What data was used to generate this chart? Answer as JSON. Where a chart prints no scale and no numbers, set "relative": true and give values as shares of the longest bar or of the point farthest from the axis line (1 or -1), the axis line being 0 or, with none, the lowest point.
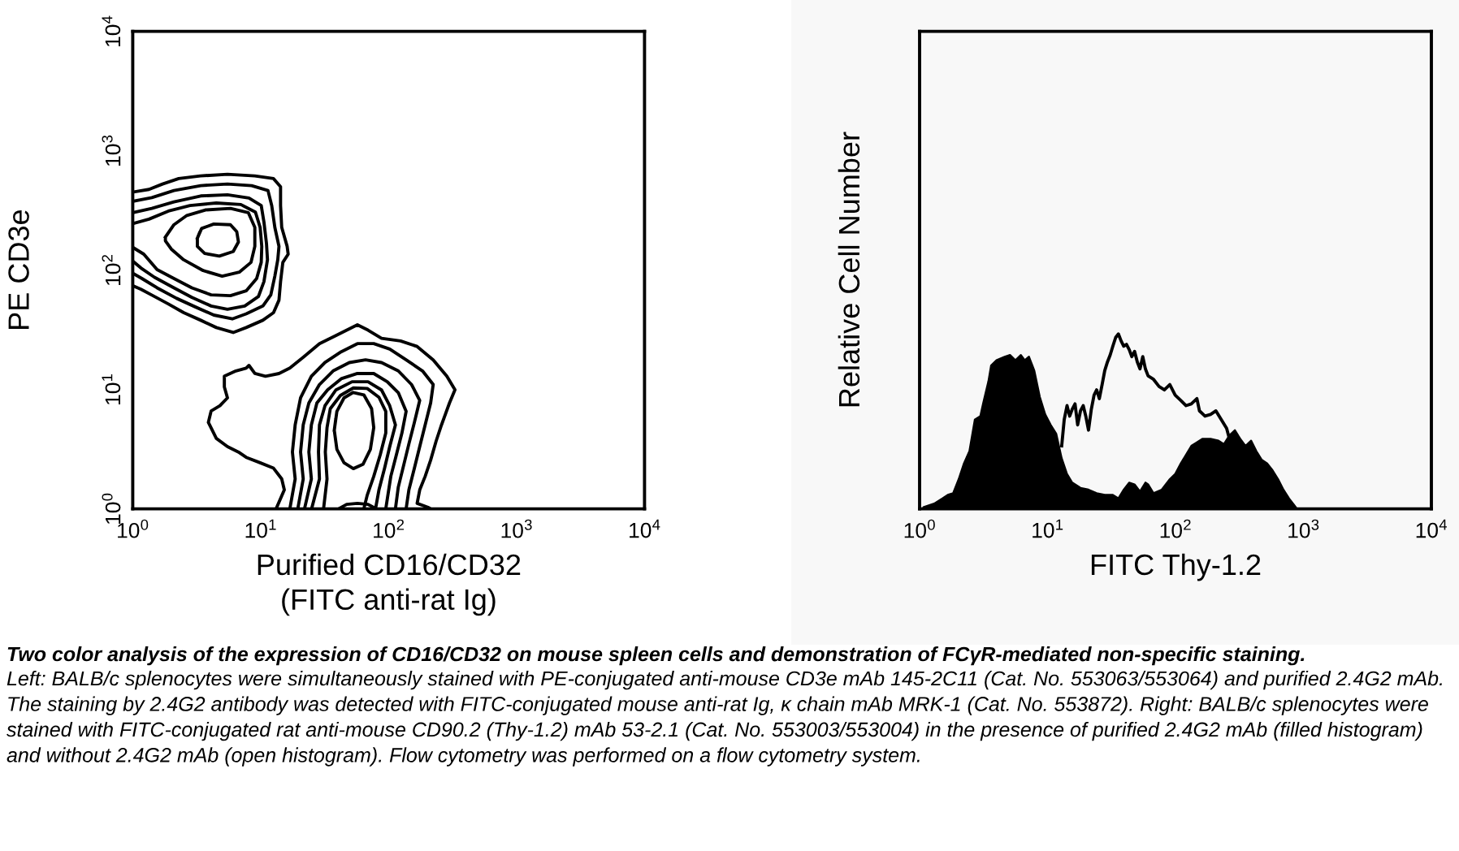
{
  "chart_data": [
    {
      "type": "line",
      "log": "xy",
      "xlabel": "Purified CD16/CD32\n(FITC anti-rat Ig)",
      "ylabel": "PE CD3e",
      "xlim": [
        1,
        10000
      ],
      "ylim": [
        1,
        10000
      ],
      "xticks": [
        {
          "value": 1,
          "label": "10$^{0}$"
        },
        {
          "value": 10,
          "label": "10$^{1}$"
        },
        {
          "value": 100,
          "label": "10$^{2}$"
        },
        {
          "value": 1000,
          "label": "10$^{3}$"
        },
        {
          "value": 10000,
          "label": "10$^{4}$"
        }
      ],
      "yticks": [
        {
          "value": 1,
          "label": "10$^{0}$"
        },
        {
          "value": 10,
          "label": "10$^{1}$"
        },
        {
          "value": 100,
          "label": "10$^{2}$"
        },
        {
          "value": 1000,
          "label": "10$^{3}$"
        },
        {
          "value": 10000,
          "label": "10$^{4}$"
        }
      ],
      "series": [
        {
          "color": "#000000",
          "x": [
            1.0,
            1.34,
            1.71,
            2.29,
            3.38,
            5.5,
            9.0,
            12.6,
            14.3,
            14.3,
            14.6,
            16.1,
            16.4,
            14.9,
            14.3,
            13.9,
            12.6,
            10.4,
            7.7,
            6.1,
            4.5,
            3.4,
            2.5,
            1.9,
            1.4,
            1.16,
            1.0
          ],
          "values": [
            450,
            474,
            526,
            584,
            615,
            635,
            615,
            584,
            499,
            347,
            228,
            158,
            136,
            116,
            80,
            56,
            44,
            38,
            33,
            30,
            33,
            38,
            44,
            52,
            62,
            69,
            74
          ]
        },
        {
          "color": "#000000",
          "x": [
            1.0,
            1.41,
            2.1,
            3.4,
            5.5,
            8.5,
            11.4,
            12.2,
            12.9,
            13.9,
            13.6,
            12.9,
            12.0,
            10.4,
            7.7,
            6.0,
            4.3,
            3.1,
            2.2,
            1.55,
            1.18,
            1.0
          ],
          "values": [
            377,
            405,
            464,
            510,
            526,
            510,
            464,
            347,
            228,
            158,
            122,
            89,
            62,
            50,
            43,
            39,
            42,
            49,
            58,
            71,
            85,
            94
          ]
        },
        {
          "color": "#000000",
          "x": [
            1.0,
            1.41,
            2.1,
            3.4,
            5.5,
            8.1,
            10.1,
            10.6,
            11.1,
            11.3,
            10.6,
            9.6,
            7.5,
            5.5,
            4.1,
            2.9,
            2.1,
            1.48,
            1.16,
            1.0
          ],
          "values": [
            303,
            329,
            373,
            418,
            427,
            401,
            347,
            253,
            167,
            122,
            80,
            60,
            50,
            47,
            50,
            59,
            71,
            87,
            104,
            119
          ]
        },
        {
          "color": "#000000",
          "x": [
            1.0,
            1.34,
            1.9,
            2.8,
            4.5,
            7.0,
            9.1,
            9.9,
            10.2,
            10.1,
            9.3,
            7.7,
            5.8,
            4.1,
            2.9,
            2.1,
            1.55,
            1.22,
            1.0
          ],
          "values": [
            245,
            267,
            312,
            347,
            365,
            354,
            306,
            228,
            158,
            116,
            85,
            67,
            61,
            62,
            71,
            85,
            101,
            136,
            155
          ]
        },
        {
          "color": "#000000",
          "x": [
            1.8,
            2.1,
            2.65,
            3.7,
            5.8,
            8.0,
            9.0,
            9.0,
            8.4,
            6.8,
            5.0,
            3.55,
            2.5,
            2.0,
            1.8,
            1.8,
            1.95
          ],
          "values": [
            189,
            240,
            287,
            319,
            329,
            303,
            228,
            158,
            116,
            96,
            89,
            99,
            122,
            150,
            176,
            189,
            214
          ]
        },
        {
          "color": "#000000",
          "x": [
            3.2,
            3.45,
            4.3,
            5.8,
            6.5,
            6.7,
            6.1,
            4.75,
            3.65,
            3.2,
            3.2,
            3.32
          ],
          "values": [
            185,
            223,
            243,
            240,
            210,
            172,
            143,
            131,
            138,
            158,
            185,
            204
          ]
        },
        {
          "color": "#000000",
          "x": [
            13.2,
            15.3,
            14.6,
            12.6,
            9.9,
            7.7,
            6.7,
            5.5,
            4.5,
            3.9,
            4.1,
            4.8,
            5.5,
            5.2,
            5.2,
            6.4,
            7.7,
            8.1,
            9.0,
            10.9,
            13.9,
            16.9,
            21.5,
            28.8,
            38.7,
            51.8,
            57,
            69,
            88,
            124,
            167,
            223,
            285,
            330,
            299,
            259,
            235,
            213,
            193,
            175,
            167,
            203,
            213
          ],
          "values": [
            1.0,
            1.44,
            1.78,
            2.19,
            2.43,
            2.7,
            2.99,
            3.32,
            3.89,
            5.3,
            6.6,
            7.3,
            8.5,
            10.5,
            12.9,
            14.3,
            15.1,
            15.9,
            13.6,
            12.9,
            13.6,
            15.1,
            18.6,
            24.2,
            28.3,
            33.1,
            34.8,
            31.4,
            26.8,
            25.5,
            22.9,
            17.7,
            12.9,
            9.95,
            7.7,
            5.05,
            3.69,
            2.56,
            1.87,
            1.44,
            1.11,
            1.03,
            1.0
          ]
        },
        {
          "color": "#000000",
          "x": [
            16.9,
            18.6,
            17.7,
            18.6,
            20.5,
            24.9,
            31.8,
            42.6,
            57,
            76.5,
            102,
            137,
            184,
            223,
            213,
            193,
            175,
            159,
            144,
            137
          ],
          "values": [
            1.0,
            1.78,
            2.99,
            5.05,
            8.5,
            12.9,
            16.8,
            20.7,
            24.2,
            24.2,
            21.8,
            17.7,
            14.3,
            11.0,
            7.7,
            5.05,
            3.32,
            2.19,
            1.44,
            1.0
          ]
        },
        {
          "color": "#000000",
          "x": [
            19.5,
            21.5,
            20.5,
            21.5,
            23.8,
            28.8,
            36.8,
            49.3,
            66,
            88,
            119,
            151,
            175,
            159,
            144,
            131,
            119,
            113
          ],
          "values": [
            1.0,
            1.78,
            2.99,
            5.05,
            7.7,
            11.0,
            14.3,
            16.8,
            17.7,
            16.8,
            14.3,
            11.0,
            8.1,
            5.3,
            3.5,
            2.31,
            1.52,
            1.0
          ]
        },
        {
          "color": "#000000",
          "x": [
            22,
            24.9,
            23.8,
            24.9,
            27.5,
            33.4,
            42.6,
            57,
            76.5,
            97.6,
            119,
            137,
            127,
            115,
            104,
            95
          ],
          "values": [
            1.0,
            1.78,
            2.99,
            5.05,
            7.7,
            9.95,
            12.3,
            13.6,
            13.6,
            11.6,
            9.4,
            6.55,
            4.31,
            2.84,
            1.87,
            1.0
          ]
        },
        {
          "color": "#000000",
          "x": [
            25,
            28.8,
            28.3,
            28.8,
            31.8,
            38.7,
            51.8,
            69,
            88,
            102,
            113,
            102,
            93,
            84,
            79
          ],
          "values": [
            1.0,
            1.78,
            2.99,
            5.05,
            7.3,
            9.9,
            11.6,
            11.6,
            9.9,
            7.3,
            5.05,
            3.32,
            2.19,
            1.44,
            1.0
          ]
        },
        {
          "color": "#000000",
          "x": [
            31,
            33,
            32,
            33,
            35,
            42,
            53,
            68,
            84,
            95,
            95,
            86,
            76.5,
            68,
            64
          ],
          "values": [
            1.0,
            1.78,
            2.99,
            4.79,
            6.9,
            8.9,
            10.3,
            10.2,
            8.6,
            6.55,
            4.31,
            2.84,
            1.87,
            1.3,
            1.0
          ]
        },
        {
          "color": "#000000",
          "x": [
            37.6,
            39.4,
            44.8,
            52.8,
            64,
            73.6,
            76.5,
            72,
            63,
            53,
            44.8,
            39.4,
            37.6,
            38.5
          ],
          "values": [
            4.55,
            6.55,
            8.5,
            9.44,
            9.0,
            6.9,
            4.79,
            3.15,
            2.36,
            2.17,
            2.43,
            3.15,
            4.55,
            5.5
          ]
        },
        {
          "color": "#000000",
          "x": [
            40.6,
            47,
            57,
            69,
            80
          ],
          "values": [
            1.0,
            1.09,
            1.11,
            1.09,
            1.0
          ]
        }
      ],
      "annotations": [
        "Two color analysis of the expression of CD16/CD32 on mouse spleen cells and demonstration of FCγR-mediated non-specific staining.",
        "Left: BALB/c splenocytes were simultaneously stained with PE-conjugated anti-mouse CD3e mAb 145-2C11 (Cat. No. 553063/553064) and purified 2.4G2 mAb. The staining by 2.4G2 antibody was detected with FITC-conjugated mouse anti-rat Ig, κ chain mAb MRK-1 (Cat. No. 553872). Right: BALB/c splenocytes were stained with FITC-conjugated rat anti-mouse CD90.2 (Thy-1.2) mAb 53-2.1 (Cat. No. 553003/553004) in the presence of purified 2.4G2 mAb (filled histogram) and without 2.4G2 mAb (open histogram). Flow cytometry was performed on a flow cytometry system."
      ]
    },
    {
      "type": "line",
      "log": "x",
      "relative": true,
      "tick_labels": "x",
      "xlabel": "FITC Thy-1.2",
      "ylabel": "Relative Cell Number",
      "xlim": [
        1,
        10000
      ],
      "xticks": [
        {
          "value": 1,
          "label": "10$^{0}$"
        },
        {
          "value": 10,
          "label": "10$^{1}$"
        },
        {
          "value": 100,
          "label": "10$^{2}$"
        },
        {
          "value": 1000,
          "label": "10$^{3}$"
        },
        {
          "value": 10000,
          "label": "10$^{4}$"
        }
      ],
      "series": [
        {
          "type": "line",
          "color": "#000000",
          "x": [
            12.9,
            13.5,
            14.2,
            14.9,
            15.6,
            16.4,
            17.2,
            18.1,
            19.0,
            19.9,
            20.9,
            22.0,
            23.1,
            24.2,
            25.4,
            26.7,
            28.0,
            29.4,
            30.9,
            32.4,
            34.1,
            35.8,
            37.6,
            39.4,
            41.4,
            43.5,
            45.6,
            47.9,
            50.3,
            52.8,
            55.5,
            58.2,
            61.1,
            67.4,
            74.3,
            81.9,
            90.3,
            99.5,
            110,
            121,
            133,
            147,
            154,
            170,
            188,
            207,
            228,
            251,
            264
          ],
          "values": [
            0.36,
            0.51,
            0.59,
            0.53,
            0.57,
            0.6,
            0.48,
            0.56,
            0.59,
            0.53,
            0.45,
            0.57,
            0.65,
            0.68,
            0.63,
            0.71,
            0.79,
            0.84,
            0.88,
            0.93,
            0.98,
            1.0,
            0.96,
            0.93,
            0.94,
            0.91,
            0.87,
            0.9,
            0.84,
            0.8,
            0.87,
            0.8,
            0.76,
            0.74,
            0.7,
            0.68,
            0.71,
            0.65,
            0.62,
            0.59,
            0.6,
            0.63,
            0.56,
            0.53,
            0.54,
            0.56,
            0.51,
            0.46,
            0.4
          ]
        },
        {
          "type": "area",
          "color": "#000000",
          "x": [
            1.07,
            1.3,
            1.51,
            1.66,
            1.83,
            2.02,
            2.22,
            2.45,
            2.7,
            2.98,
            3.13,
            3.45,
            3.62,
            3.99,
            4.62,
            5.09,
            5.61,
            6.19,
            6.63,
            7.16,
            7.89,
            8.71,
            9.6,
            10.6,
            11.7,
            12.2,
            12.9,
            14.2,
            15.6,
            18.1,
            20.9,
            24.2,
            28.0,
            32.4,
            35.8,
            39.4,
            43.5,
            47.9,
            52.8,
            58.2,
            61.1,
            67.4,
            78.0,
            90.3,
            99.5,
            110,
            121,
            133,
            147,
            162,
            188,
            217,
            239,
            264,
            291,
            321,
            353,
            390,
            429,
            473,
            521,
            575,
            634,
            698,
            771,
            849,
            891
          ],
          "values": [
            0.01,
            0.03,
            0.06,
            0.08,
            0.09,
            0.17,
            0.26,
            0.33,
            0.51,
            0.53,
            0.6,
            0.73,
            0.82,
            0.85,
            0.87,
            0.88,
            0.85,
            0.88,
            0.85,
            0.87,
            0.79,
            0.64,
            0.54,
            0.48,
            0.43,
            0.37,
            0.29,
            0.2,
            0.15,
            0.12,
            0.11,
            0.09,
            0.08,
            0.08,
            0.06,
            0.11,
            0.15,
            0.14,
            0.1,
            0.15,
            0.14,
            0.09,
            0.11,
            0.17,
            0.2,
            0.26,
            0.31,
            0.36,
            0.38,
            0.4,
            0.4,
            0.39,
            0.37,
            0.42,
            0.45,
            0.4,
            0.36,
            0.39,
            0.33,
            0.28,
            0.26,
            0.22,
            0.17,
            0.11,
            0.06,
            0.02,
            0
          ]
        }
      ]
    }
  ]
}
